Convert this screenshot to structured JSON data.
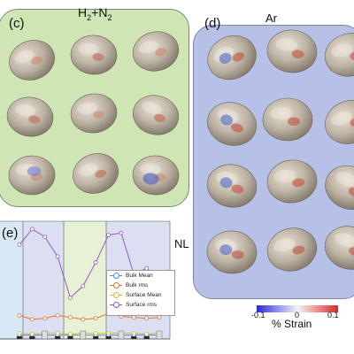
{
  "panel_c": {
    "label": "(c)",
    "title_main": "H",
    "title_sub1": "2",
    "title_mid": "+N",
    "title_sub2": "2"
  },
  "panel_d": {
    "label": "(d)",
    "title": "Ar"
  },
  "panel_e": {
    "label": "(e)",
    "side_label": "NL",
    "legend": [
      {
        "label": "Bulk Mean",
        "color": "#4a8fd4"
      },
      {
        "label": "Bulk rms",
        "color": "#e0763a"
      },
      {
        "label": "Surface Mean",
        "color": "#d9b43a"
      },
      {
        "label": "Surface rms",
        "color": "#8e5cc8"
      }
    ],
    "chart_data": {
      "type": "line",
      "x": [
        1,
        2,
        3,
        4,
        5,
        6,
        7,
        8,
        9,
        10,
        11,
        12
      ],
      "series": [
        {
          "name": "Bulk Mean",
          "values": [
            0.2,
            0.2,
            0.2,
            0.2,
            0.2,
            0.2,
            0.2,
            0.2,
            0.2,
            0.2,
            0.2,
            0.2
          ]
        },
        {
          "name": "Bulk rms",
          "values": [
            1.2,
            1.0,
            1.05,
            1.2,
            1.1,
            1.0,
            1.05,
            1.3,
            1.15,
            1.1,
            1.05,
            1.1
          ]
        },
        {
          "name": "Surface Mean",
          "values": [
            0.3,
            0.25,
            0.3,
            0.3,
            0.25,
            0.3,
            0.3,
            0.3,
            0.3,
            0.3,
            0.25,
            0.3
          ]
        },
        {
          "name": "Surface rms",
          "values": [
            4.8,
            5.6,
            5.2,
            4.2,
            2.1,
            2.7,
            3.9,
            5.3,
            5.4,
            3.3,
            3.6,
            3.1
          ]
        }
      ],
      "ylim": [
        0,
        6
      ],
      "grid": false,
      "legend_position": "right"
    }
  },
  "colorbar": {
    "min_label": "-0.1",
    "mid_label": "0",
    "max_label": "0.1",
    "title": "% Strain",
    "colors": [
      "#2a2ad6",
      "#f2f2f2",
      "#d62a2a"
    ]
  }
}
